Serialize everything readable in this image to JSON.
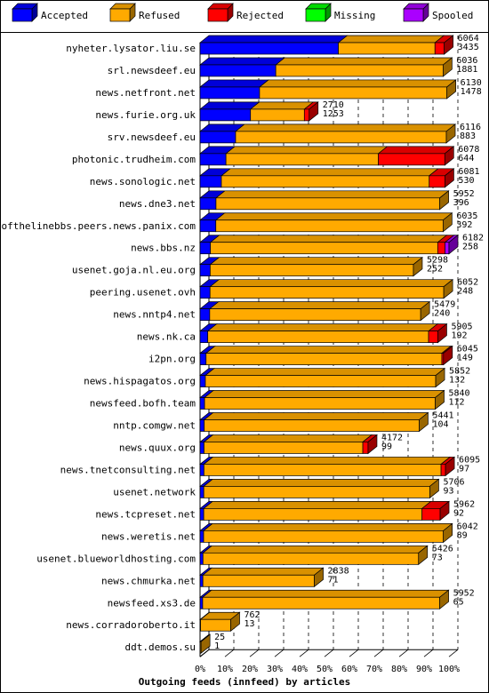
{
  "chart_data": {
    "type": "bar",
    "title": "Outgoing feeds (innfeed) by articles",
    "legend_position": "top",
    "series": [
      {
        "key": "accepted",
        "name": "Accepted",
        "color": "#0000ff"
      },
      {
        "key": "refused",
        "name": "Refused",
        "color": "#ffaa00"
      },
      {
        "key": "rejected",
        "name": "Rejected",
        "color": "#ff0000"
      },
      {
        "key": "missing",
        "name": "Missing",
        "color": "#00ff00"
      },
      {
        "key": "spooled",
        "name": "Spooled",
        "color": "#aa00ff"
      }
    ],
    "x_ticks": [
      "0%",
      "10%",
      "20%",
      "30%",
      "40%",
      "50%",
      "60%",
      "70%",
      "80%",
      "90%",
      "100%"
    ],
    "xlim_percent": [
      0,
      100
    ],
    "rows": [
      {
        "host": "nyheter.lysator.liu.se",
        "offered": 6064,
        "accepted": 3435,
        "rejected": 230,
        "missing": 0,
        "spooled": 0
      },
      {
        "host": "srl.newsdeef.eu",
        "offered": 6036,
        "accepted": 1881,
        "rejected": 0,
        "missing": 0,
        "spooled": 0
      },
      {
        "host": "news.netfront.net",
        "offered": 6130,
        "accepted": 1478,
        "rejected": 0,
        "missing": 0,
        "spooled": 0
      },
      {
        "host": "news.furie.org.uk",
        "offered": 2710,
        "accepted": 1253,
        "rejected": 120,
        "missing": 0,
        "spooled": 0
      },
      {
        "host": "srv.newsdeef.eu",
        "offered": 6116,
        "accepted": 883,
        "rejected": 0,
        "missing": 0,
        "spooled": 0
      },
      {
        "host": "photonic.trudheim.com",
        "offered": 6078,
        "accepted": 644,
        "rejected": 1650,
        "missing": 0,
        "spooled": 0
      },
      {
        "host": "news.sonologic.net",
        "offered": 6081,
        "accepted": 530,
        "rejected": 390,
        "missing": 0,
        "spooled": 0
      },
      {
        "host": "news.dne3.net",
        "offered": 5952,
        "accepted": 396,
        "rejected": 0,
        "missing": 0,
        "spooled": 0
      },
      {
        "host": "endofthelinebbs.peers.news.panix.com",
        "offered": 6035,
        "accepted": 392,
        "rejected": 0,
        "missing": 0,
        "spooled": 0
      },
      {
        "host": "news.bbs.nz",
        "offered": 6182,
        "accepted": 258,
        "rejected": 180,
        "missing": 0,
        "spooled": 100
      },
      {
        "host": "usenet.goja.nl.eu.org",
        "offered": 5298,
        "accepted": 252,
        "rejected": 0,
        "missing": 0,
        "spooled": 0
      },
      {
        "host": "peering.usenet.ovh",
        "offered": 6052,
        "accepted": 248,
        "rejected": 0,
        "missing": 0,
        "spooled": 0
      },
      {
        "host": "news.nntp4.net",
        "offered": 5479,
        "accepted": 240,
        "rejected": 0,
        "missing": 0,
        "spooled": 0
      },
      {
        "host": "news.nk.ca",
        "offered": 5905,
        "accepted": 192,
        "rejected": 230,
        "missing": 0,
        "spooled": 0
      },
      {
        "host": "i2pn.org",
        "offered": 6045,
        "accepted": 149,
        "rejected": 40,
        "missing": 0,
        "spooled": 0
      },
      {
        "host": "news.hispagatos.org",
        "offered": 5852,
        "accepted": 132,
        "rejected": 0,
        "missing": 0,
        "spooled": 0
      },
      {
        "host": "newsfeed.bofh.team",
        "offered": 5840,
        "accepted": 112,
        "rejected": 0,
        "missing": 0,
        "spooled": 0
      },
      {
        "host": "nntp.comgw.net",
        "offered": 5441,
        "accepted": 104,
        "rejected": 0,
        "missing": 0,
        "spooled": 0
      },
      {
        "host": "news.quux.org",
        "offered": 4172,
        "accepted": 99,
        "rejected": 130,
        "missing": 0,
        "spooled": 0
      },
      {
        "host": "news.tnetconsulting.net",
        "offered": 6095,
        "accepted": 97,
        "rejected": 110,
        "missing": 0,
        "spooled": 0
      },
      {
        "host": "usenet.network",
        "offered": 5706,
        "accepted": 93,
        "rejected": 0,
        "missing": 0,
        "spooled": 0
      },
      {
        "host": "news.tcpreset.net",
        "offered": 5962,
        "accepted": 92,
        "rejected": 450,
        "missing": 0,
        "spooled": 0
      },
      {
        "host": "news.weretis.net",
        "offered": 6042,
        "accepted": 89,
        "rejected": 0,
        "missing": 0,
        "spooled": 0
      },
      {
        "host": "usenet.blueworldhosting.com",
        "offered": 5426,
        "accepted": 73,
        "rejected": 0,
        "missing": 0,
        "spooled": 0
      },
      {
        "host": "news.chmurka.net",
        "offered": 2838,
        "accepted": 71,
        "rejected": 0,
        "missing": 0,
        "spooled": 0
      },
      {
        "host": "newsfeed.xs3.de",
        "offered": 5952,
        "accepted": 65,
        "rejected": 0,
        "missing": 0,
        "spooled": 0
      },
      {
        "host": "news.corradoroberto.it",
        "offered": 762,
        "accepted": 13,
        "rejected": 0,
        "missing": 0,
        "spooled": 0
      },
      {
        "host": "ddt.demos.su",
        "offered": 25,
        "accepted": 1,
        "rejected": 0,
        "missing": 0,
        "spooled": 0
      }
    ]
  }
}
